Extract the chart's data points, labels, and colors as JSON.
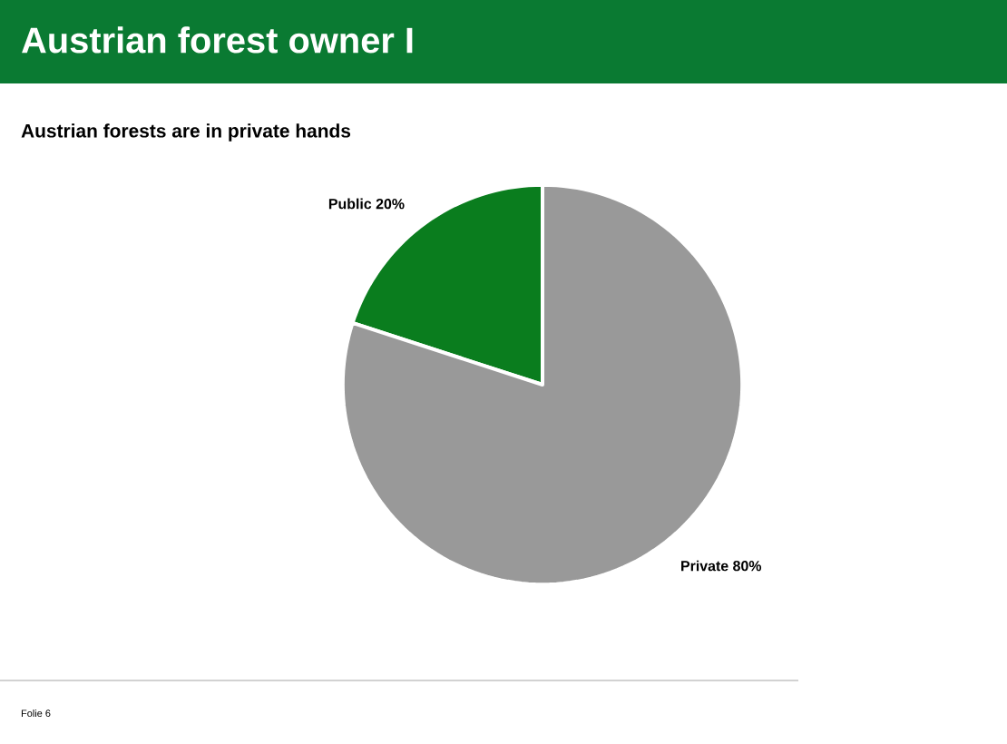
{
  "chart_data": {
    "type": "pie",
    "title": "Austrian forest owner I",
    "subtitle": "Austrian forests are in private hands",
    "categories": [
      "Public",
      "Private"
    ],
    "values": [
      20,
      80
    ],
    "colors": [
      "#0a7d1e",
      "#999999"
    ],
    "value_labels": [
      "20%",
      "80%"
    ],
    "annotations": [
      "Folie 6"
    ]
  }
}
